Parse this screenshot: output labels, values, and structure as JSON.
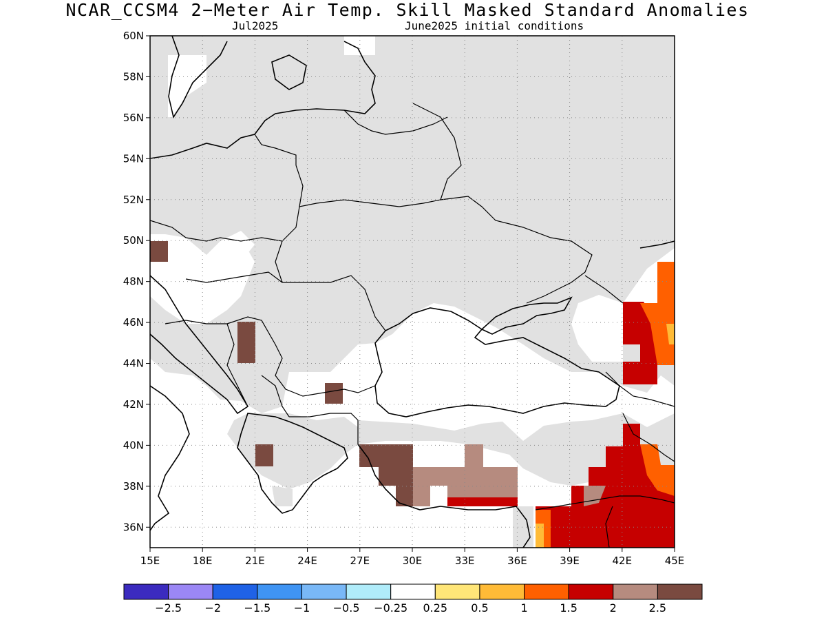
{
  "title": "NCAR_CCSM4 2−Meter Air Temp. Skill Masked Standard Anomalies",
  "subtitle_left": "Jul2025",
  "subtitle_right": "June2025 initial conditions",
  "map": {
    "lon_range": [
      15,
      45
    ],
    "lat_range": [
      35,
      60
    ],
    "lon_ticks": [
      "15E",
      "18E",
      "21E",
      "24E",
      "27E",
      "30E",
      "33E",
      "36E",
      "39E",
      "42E",
      "45E"
    ],
    "lat_ticks": [
      "60N",
      "58N",
      "56N",
      "54N",
      "52N",
      "50N",
      "48N",
      "46N",
      "44N",
      "42N",
      "40N",
      "38N",
      "36N"
    ],
    "grid": "dotted"
  },
  "colorbar": {
    "colors": [
      "#3b2bbf",
      "#9b87f5",
      "#1f62e6",
      "#3f94f3",
      "#79b8f7",
      "#b0ecfa",
      "#ffffff",
      "#ffe678",
      "#ffbb37",
      "#ff6000",
      "#c60000",
      "#b68b7f",
      "#7a4a40"
    ],
    "labels": [
      "−2.5",
      "−2",
      "−1.5",
      "−1",
      "−0.5",
      "−0.25",
      "0.25",
      "0.5",
      "1",
      "1.5",
      "2",
      "2.5"
    ]
  },
  "legend_colors": {
    "masked": "#e1e1e1",
    "neutral": "#ffffff"
  }
}
